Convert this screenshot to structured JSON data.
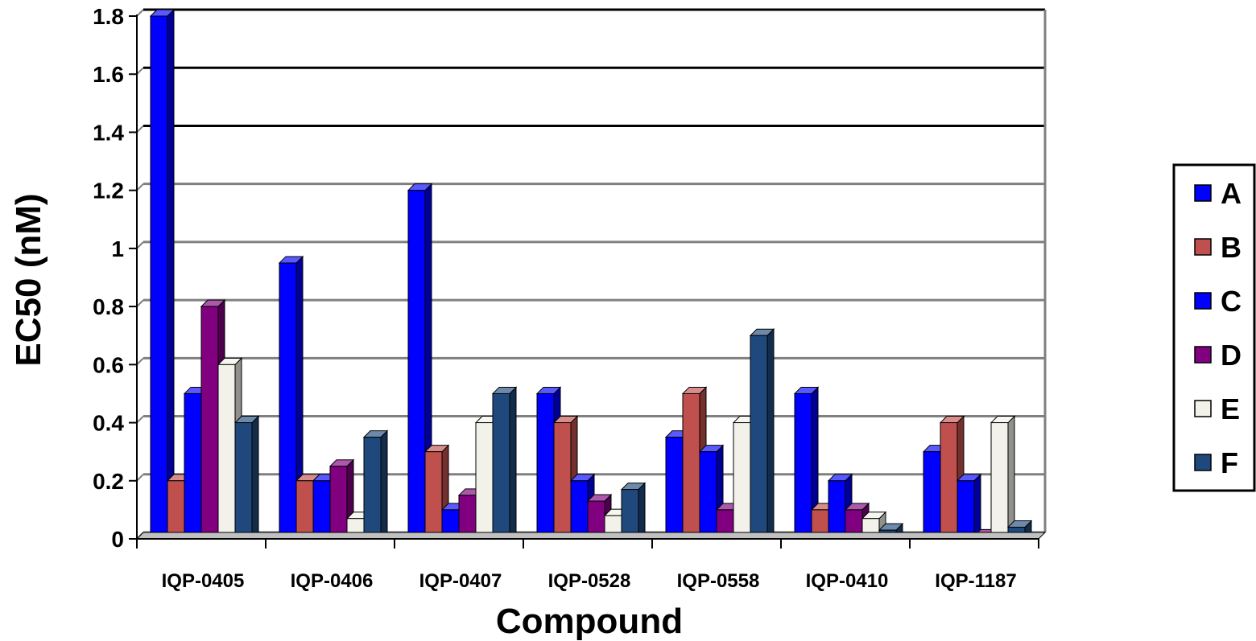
{
  "chart_data": {
    "type": "bar",
    "xlabel": "Compound",
    "ylabel": "EC50 (nM)",
    "ylim": [
      0,
      1.8
    ],
    "yticks": [
      "0",
      "0.2",
      "0.4",
      "0.6",
      "0.8",
      "1",
      "1.2",
      "1.4",
      "1.6",
      "1.8"
    ],
    "grid": true,
    "legend_position": "right",
    "categories": [
      "IQP-0405",
      "IQP-0406",
      "IQP-0407",
      "IQP-0528",
      "IQP-0558",
      "IQP-0410",
      "IQP-1187"
    ],
    "series": [
      {
        "name": "A",
        "color": "#0000ff",
        "values": [
          1.8,
          0.95,
          1.2,
          0.5,
          0.35,
          0.5,
          0.3
        ]
      },
      {
        "name": "B",
        "color": "#c0504d",
        "values": [
          0.2,
          0.2,
          0.3,
          0.4,
          0.5,
          0.1,
          0.4
        ]
      },
      {
        "name": "C",
        "color": "#0000ff",
        "values": [
          0.5,
          0.2,
          0.1,
          0.2,
          0.3,
          0.2,
          0.2
        ]
      },
      {
        "name": "D",
        "color": "#800080",
        "values": [
          0.8,
          0.25,
          0.15,
          0.13,
          0.1,
          0.1,
          0.01
        ]
      },
      {
        "name": "E",
        "color": "#f2f2ea",
        "values": [
          0.6,
          0.07,
          0.4,
          0.08,
          0.4,
          0.07,
          0.4
        ]
      },
      {
        "name": "F",
        "color": "#1f497d",
        "values": [
          0.4,
          0.35,
          0.5,
          0.17,
          0.7,
          0.03,
          0.04
        ]
      }
    ]
  }
}
